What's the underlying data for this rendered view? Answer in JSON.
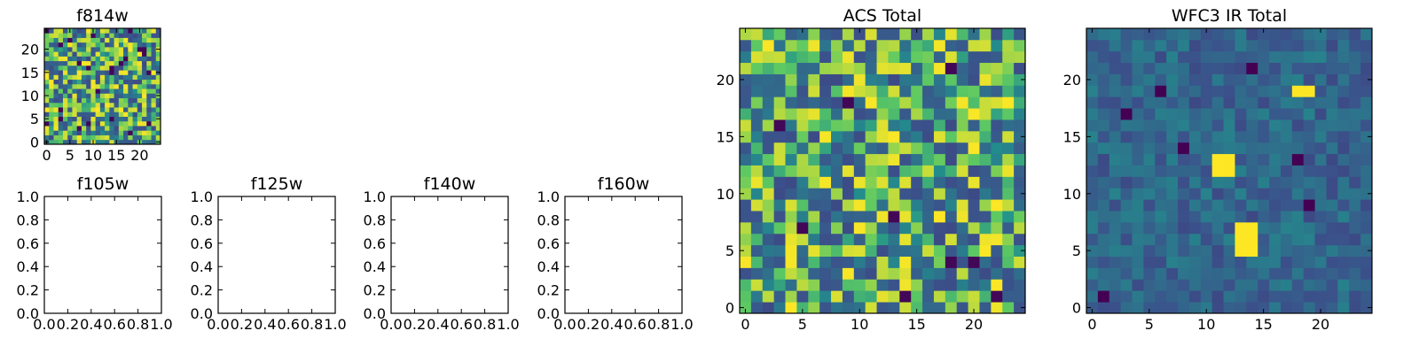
{
  "chart_data": [
    {
      "type": "heatmap",
      "id": "f814w",
      "title": "f814w",
      "size": 25,
      "seed": 11,
      "style": "acs",
      "xticks": [
        0,
        5,
        10,
        15,
        20
      ],
      "yticks": [
        0,
        5,
        10,
        15,
        20
      ],
      "xlim": [
        -0.5,
        24.5
      ],
      "ylim": [
        -0.5,
        24.5
      ]
    },
    {
      "type": "empty",
      "id": "f105w",
      "title": "f105w",
      "xticks": [
        "0.0",
        "0.2",
        "0.4",
        "0.6",
        "0.8",
        "1.0"
      ],
      "yticks": [
        "0.0",
        "0.2",
        "0.4",
        "0.6",
        "0.8",
        "1.0"
      ],
      "xlim": [
        0,
        1
      ],
      "ylim": [
        0,
        1
      ]
    },
    {
      "type": "empty",
      "id": "f125w",
      "title": "f125w",
      "xticks": [
        "0.0",
        "0.2",
        "0.4",
        "0.6",
        "0.8",
        "1.0"
      ],
      "yticks": [
        "0.0",
        "0.2",
        "0.4",
        "0.6",
        "0.8",
        "1.0"
      ],
      "xlim": [
        0,
        1
      ],
      "ylim": [
        0,
        1
      ]
    },
    {
      "type": "empty",
      "id": "f140w",
      "title": "f140w",
      "xticks": [
        "0.0",
        "0.2",
        "0.4",
        "0.6",
        "0.8",
        "1.0"
      ],
      "yticks": [
        "0.0",
        "0.2",
        "0.4",
        "0.6",
        "0.8",
        "1.0"
      ],
      "xlim": [
        0,
        1
      ],
      "ylim": [
        0,
        1
      ]
    },
    {
      "type": "empty",
      "id": "f160w",
      "title": "f160w",
      "xticks": [
        "0.0",
        "0.2",
        "0.4",
        "0.6",
        "0.8",
        "1.0"
      ],
      "yticks": [
        "0.0",
        "0.2",
        "0.4",
        "0.6",
        "0.8",
        "1.0"
      ],
      "xlim": [
        0,
        1
      ],
      "ylim": [
        0,
        1
      ]
    },
    {
      "type": "heatmap",
      "id": "acs-total",
      "title": "ACS Total",
      "size": 25,
      "seed": 27,
      "style": "acs",
      "xticks": [
        0,
        5,
        10,
        15,
        20
      ],
      "yticks": [
        0,
        5,
        10,
        15,
        20
      ],
      "xlim": [
        -0.5,
        24.5
      ],
      "ylim": [
        -0.5,
        24.5
      ]
    },
    {
      "type": "heatmap",
      "id": "wfc3-ir-total",
      "title": "WFC3 IR Total",
      "size": 25,
      "seed": 53,
      "style": "ir",
      "xticks": [
        0,
        5,
        10,
        15,
        20
      ],
      "yticks": [
        0,
        5,
        10,
        15,
        20
      ],
      "xlim": [
        -0.5,
        24.5
      ],
      "ylim": [
        -0.5,
        24.5
      ],
      "hotspots": [
        [
          11,
          12,
          2,
          2
        ],
        [
          13,
          5,
          2,
          3
        ],
        [
          18,
          19,
          2,
          1
        ]
      ],
      "darkspots": [
        [
          6,
          19
        ],
        [
          19,
          9
        ],
        [
          8,
          14
        ],
        [
          3,
          17
        ],
        [
          14,
          21
        ],
        [
          18,
          13
        ],
        [
          1,
          1
        ]
      ]
    }
  ],
  "colormap": [
    "#440154",
    "#3b528b",
    "#21918c",
    "#5ec962",
    "#fde725"
  ]
}
